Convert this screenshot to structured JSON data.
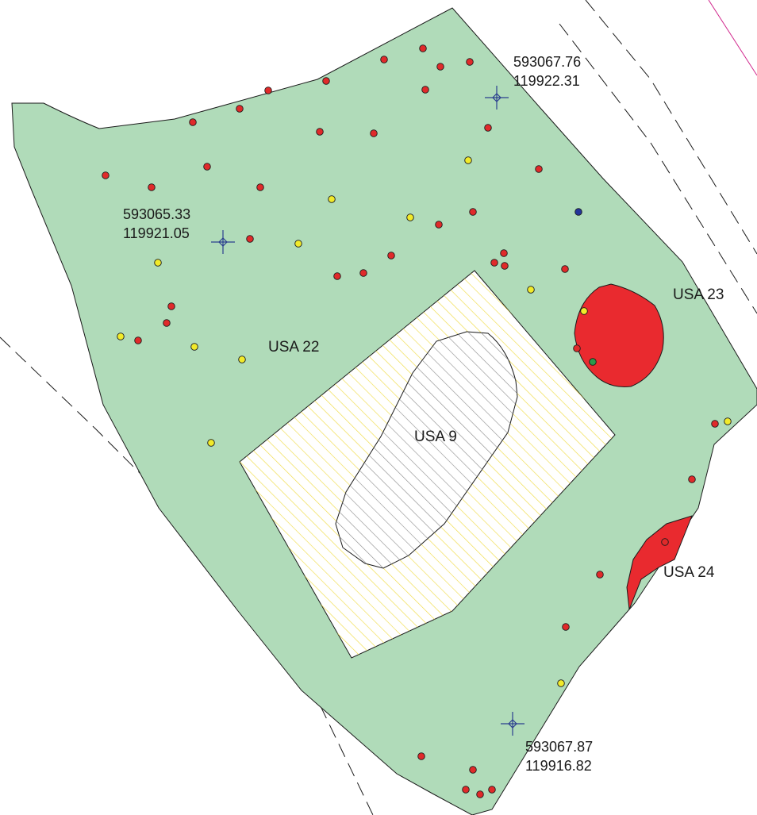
{
  "colors": {
    "background": "#ffffff",
    "usa22_fill": "#b0dbb9",
    "usa9_hatch": "#8a8a8a",
    "excavation_hatch": "#f0dc48",
    "feature_red": "#e92a2f",
    "marker_red": "#e02a2a",
    "marker_yellow": "#f1ea2a",
    "marker_blue": "#23349a",
    "marker_green": "#2a9a4a",
    "survey_point": "#2b3f8f",
    "boundary_magenta": "#d0248b",
    "outline": "#1a1a1a"
  },
  "units": {
    "usa22": {
      "label": "USA 22"
    },
    "usa23": {
      "label": "USA 23"
    },
    "usa24": {
      "label": "USA 24"
    },
    "usa9": {
      "label": "USA 9"
    }
  },
  "survey_points": [
    {
      "e": "593067.76",
      "n": "119922.31",
      "icon": "crosshair-icon"
    },
    {
      "e": "593065.33",
      "n": "119921.05",
      "icon": "crosshair-icon"
    },
    {
      "e": "593067.87",
      "n": "119916.82",
      "icon": "crosshair-icon"
    }
  ],
  "finds_legend": {
    "red": "red find marker",
    "yellow": "yellow find marker",
    "blue": "blue find marker",
    "green": "green find marker"
  }
}
